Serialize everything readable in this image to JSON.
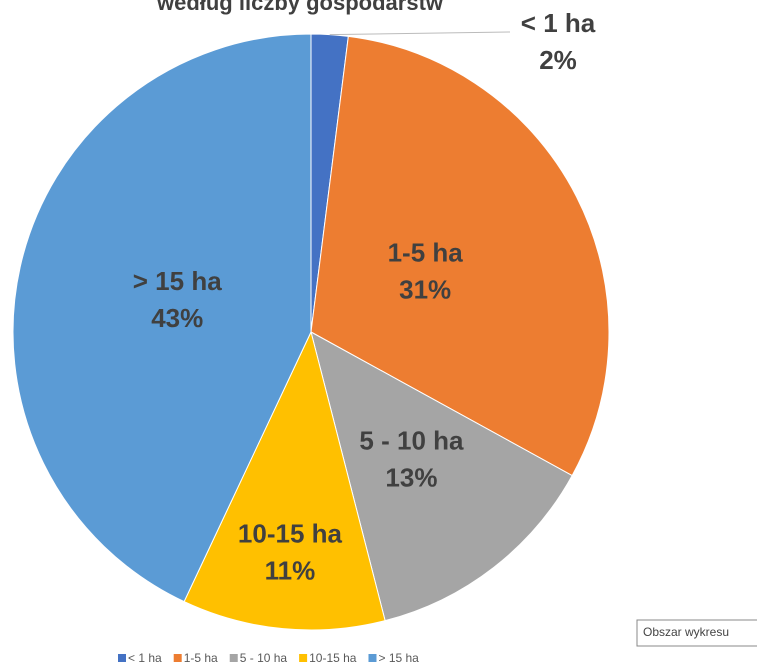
{
  "chart_data": {
    "type": "pie",
    "title": "według liczby gospodarstw",
    "categories": [
      "< 1 ha",
      "1-5 ha",
      "5 - 10 ha",
      "10-15 ha",
      "> 15 ha"
    ],
    "values": [
      2,
      31,
      13,
      11,
      43
    ],
    "value_labels": [
      "2%",
      "31%",
      "13%",
      "11%",
      "43%"
    ],
    "colors": [
      "#4472c4",
      "#ed7d31",
      "#a5a5a5",
      "#ffc000",
      "#5b9bd5"
    ],
    "legend": "bottom"
  },
  "tooltip": "Obszar wykresu"
}
